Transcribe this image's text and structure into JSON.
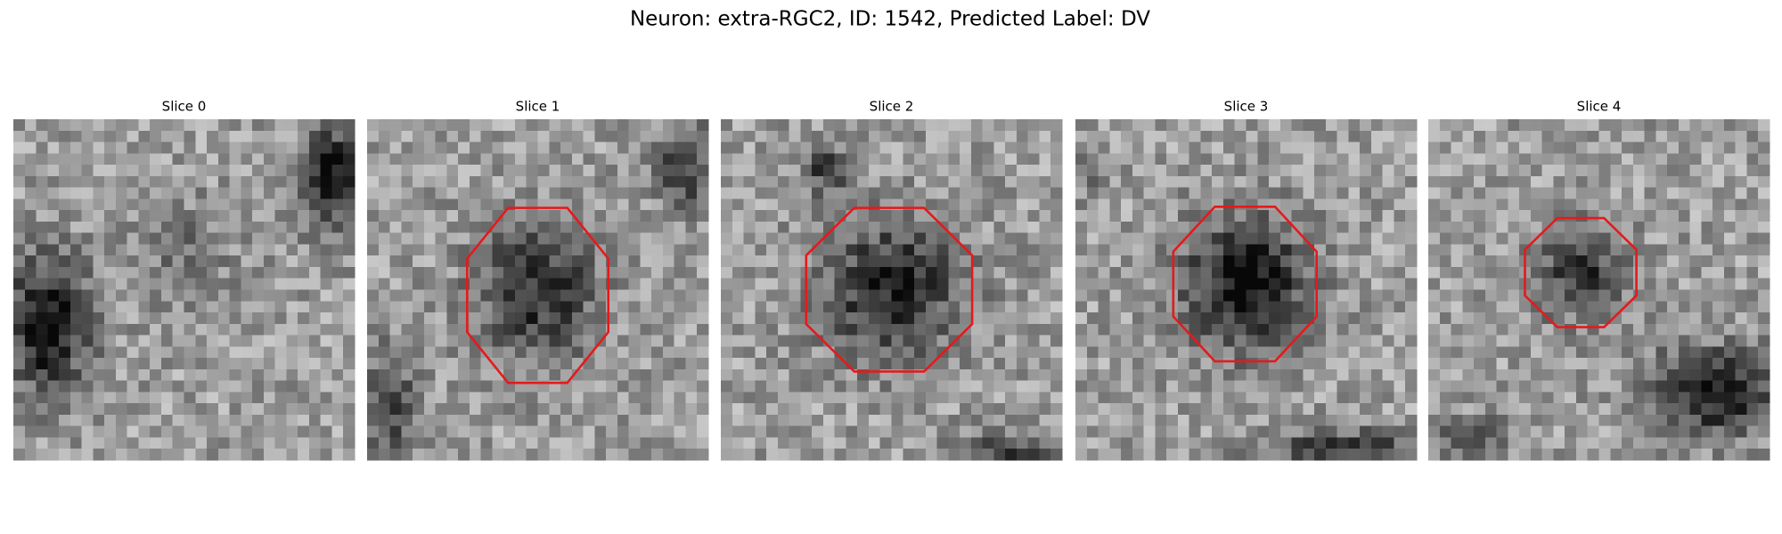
{
  "header": {
    "title": "Neuron: extra-RGC2, ID: 1542, Predicted Label: DV"
  },
  "panels": [
    {
      "title": "Slice 0"
    },
    {
      "title": "Slice 1"
    },
    {
      "title": "Slice 2"
    },
    {
      "title": "Slice 3"
    },
    {
      "title": "Slice 4"
    }
  ]
}
